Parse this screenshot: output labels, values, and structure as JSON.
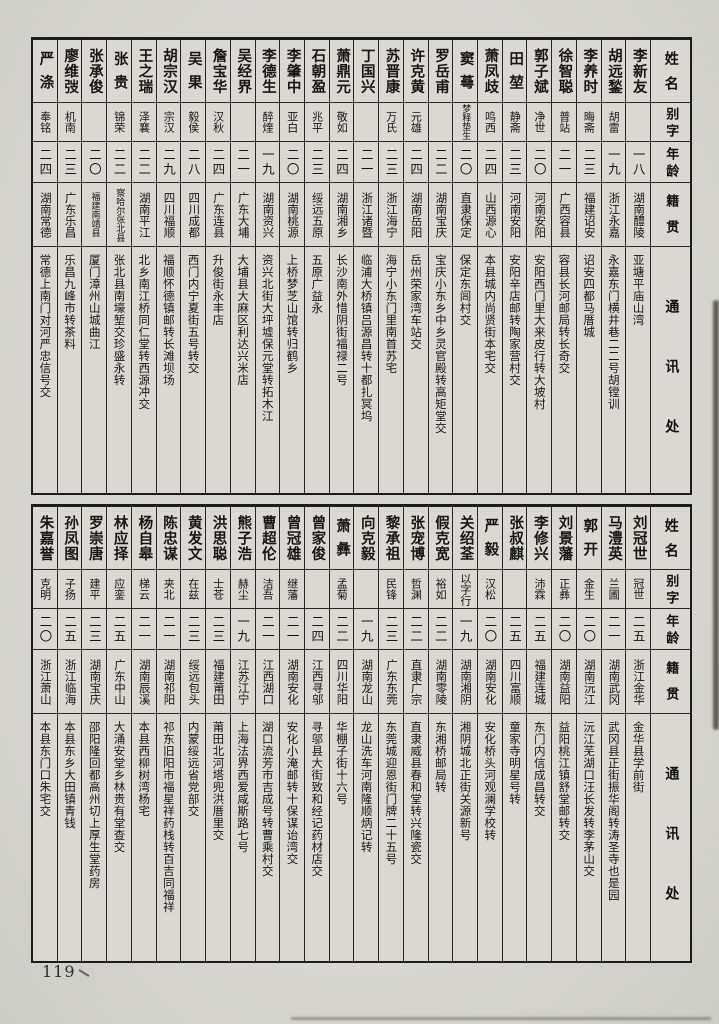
{
  "page": {
    "number": "119",
    "paper_color": "#d8d7d2",
    "ink_color": "#1c1c1c"
  },
  "headers": {
    "name": "姓名",
    "courtesy": "别字",
    "age": "年龄",
    "native": "籍贯",
    "contact": "通讯处"
  },
  "tables": [
    {
      "entries": [
        {
          "name": "李新友",
          "courtesy": "",
          "age": "一八",
          "native": "湖南醴陵",
          "contact": "亚塘平庙山湾"
        },
        {
          "name": "胡远鍫",
          "courtesy": "胡雷",
          "age": "一九",
          "native": "浙江永嘉",
          "contact": "永嘉东门横井巷二二号胡镗训"
        },
        {
          "name": "李养时",
          "courtesy": "晦斋",
          "age": "二三",
          "native": "福建诏安",
          "contact": "诏安四都马厝城"
        },
        {
          "name": "徐智聪",
          "courtesy": "普站",
          "age": "二一",
          "native": "广西容县",
          "contact": "容县长河邮局转长奇交"
        },
        {
          "name": "郭子斌",
          "courtesy": "净世",
          "age": "二〇",
          "native": "河南安阳",
          "contact": "安阳西门里大来皮行转大坡村"
        },
        {
          "name": "田堃",
          "courtesy": "静斋",
          "age": "二三",
          "native": "河南安阳",
          "contact": "安阳辛店邮转陶家营村交"
        },
        {
          "name": "萧凤歧",
          "courtesy": "鸣西",
          "age": "二四",
          "native": "山西源心",
          "contact": "本县城内尚贤街本宅交"
        },
        {
          "name": "窦蕚",
          "courtesy": "梦释垫生",
          "age": "二〇",
          "native": "直隶保定",
          "contact": "保定东闾村交"
        },
        {
          "name": "罗岳甫",
          "courtesy": "",
          "age": "二二",
          "native": "湖南宝庆",
          "contact": "宝庆小东乡中乡灵官殿转高矩堂交"
        },
        {
          "name": "许克黄",
          "courtesy": "元雄",
          "age": "二四",
          "native": "湖南岳阳",
          "contact": "岳州荣家湾车站交"
        },
        {
          "name": "苏晋康",
          "courtesy": "万氏",
          "age": "二三",
          "native": "浙江海宁",
          "contact": "海宁小东门里南首苏宅"
        },
        {
          "name": "丁国兴",
          "courtesy": "",
          "age": "二一",
          "native": "浙江诸暨",
          "contact": "临浦大桥镇吕源昌转十都扎冥坞"
        },
        {
          "name": "萧鼎元",
          "courtesy": "敬如",
          "age": "二四",
          "native": "湖南湘乡",
          "contact": "长沙南外惜阴街福禄二号"
        },
        {
          "name": "石朝盈",
          "courtesy": "兆平",
          "age": "二三",
          "native": "绥远五原",
          "contact": "五原广益永"
        },
        {
          "name": "李肇中",
          "courtesy": "亚白",
          "age": "二〇",
          "native": "湖南桃源",
          "contact": "上桥梦芝山馆转归鹤乡"
        },
        {
          "name": "李德生",
          "courtesy": "醉煃",
          "age": "一九",
          "native": "湖南资兴",
          "contact": "资兴北街大坪墟保元堂转拓木江"
        },
        {
          "name": "吴经界",
          "courtesy": "",
          "age": "二一",
          "native": "广东大埔",
          "contact": "大埔县大麻区利达兴米店"
        },
        {
          "name": "詹宝华",
          "courtesy": "汉秋",
          "age": "二四",
          "native": "广东连县",
          "contact": "升俊街永丰店"
        },
        {
          "name": "吴果",
          "courtesy": "毅侯",
          "age": "二八",
          "native": "四川成都",
          "contact": "西门内宁夏街五号转交"
        },
        {
          "name": "胡宗汉",
          "courtesy": "宗汉",
          "age": "二九",
          "native": "四川福顺",
          "contact": "福顺怀德镇邮转长滩坝场"
        },
        {
          "name": "王之瑞",
          "courtesy": "泽襄",
          "age": "二二",
          "native": "湖南平江",
          "contact": "北乡南江桥同仁堂转西源冲交"
        },
        {
          "name": "张贵",
          "courtesy": "锦荣",
          "age": "二二",
          "native": "察哈尔张北县",
          "contact": "张北县南壕堑交珍盛永转"
        },
        {
          "name": "张承俊",
          "courtesy": "",
          "age": "二〇",
          "native": "福建南靖县",
          "contact": "厦门漳州山城曲江"
        },
        {
          "name": "廖维弢",
          "courtesy": "机南",
          "age": "二三",
          "native": "广东乐昌",
          "contact": "乐昌九峰市转茶料"
        },
        {
          "name": "严涤",
          "courtesy": "奉铭",
          "age": "二四",
          "native": "湖南常德",
          "contact": "常德上南门对河严忠信号交"
        }
      ]
    },
    {
      "entries": [
        {
          "name": "刘冠世",
          "courtesy": "冠世",
          "age": "二五",
          "native": "浙江金华",
          "contact": "金华县学前街"
        },
        {
          "name": "马澧英",
          "courtesy": "兰圃",
          "age": "二一",
          "native": "湖南武冈",
          "contact": "武冈县正街振华阁转涛圣寺也是园"
        },
        {
          "name": "郭开",
          "courtesy": "金生",
          "age": "二〇",
          "native": "湖南沅江",
          "contact": "沅江芜湖口汪长发转李茅山交"
        },
        {
          "name": "刘景藩",
          "courtesy": "正彝",
          "age": "二〇",
          "native": "湖南益阳",
          "contact": "益阳桃江镇舒堂邮转交"
        },
        {
          "name": "李修兴",
          "courtesy": "沛霖",
          "age": "二五",
          "native": "福建连城",
          "contact": "东门内信成昌转交"
        },
        {
          "name": "张叔麒",
          "courtesy": "",
          "age": "二五",
          "native": "四川富顺",
          "contact": "童家寺明星号转"
        },
        {
          "name": "严毅",
          "courtesy": "汉松",
          "age": "二〇",
          "native": "湖南安化",
          "contact": "安化桥头河观澜学校转"
        },
        {
          "name": "关绍荃",
          "courtesy": "以字行",
          "age": "一九",
          "native": "湖南湘阴",
          "contact": "湘阴城北正街关源新号"
        },
        {
          "name": "假克宽",
          "courtesy": "裕如",
          "age": "二二",
          "native": "湖南零陵",
          "contact": "东湘桥邮局转"
        },
        {
          "name": "张宠博",
          "courtesy": "哲渊",
          "age": "二二",
          "native": "直隶广宗",
          "contact": "直隶威县春和堂转兴隆瓷交"
        },
        {
          "name": "黎承祖",
          "courtesy": "民锋",
          "age": "二三",
          "native": "广东东莞",
          "contact": "东莞城迎恩街门牌二十五号"
        },
        {
          "name": "向克毅",
          "courtesy": "",
          "age": "一九",
          "native": "湖南龙山",
          "contact": "龙山洗车河南隆顺炳记转"
        },
        {
          "name": "萧彝",
          "courtesy": "孟菊",
          "age": "二二",
          "native": "四川华阳",
          "contact": "华棚子街十六号"
        },
        {
          "name": "曾家俊",
          "courtesy": "",
          "age": "二四",
          "native": "江西寻邬",
          "contact": "寻邬县大街致和经记药材店交"
        },
        {
          "name": "曾冠雄",
          "courtesy": "继藩",
          "age": "二一",
          "native": "湖南安化",
          "contact": "安化小淹邮转十保谋诒湾交"
        },
        {
          "name": "曹超伦",
          "courtesy": "洁吾",
          "age": "二一",
          "native": "江西湖口",
          "contact": "湖口流芳市吉成号转曹乘村交"
        },
        {
          "name": "熊子浩",
          "courtesy": "赫尘",
          "age": "一九",
          "native": "江苏江宁",
          "contact": "上海法界西爱咸斯路七号"
        },
        {
          "name": "洪思聪",
          "courtesy": "士苍",
          "age": "二三",
          "native": "福建莆田",
          "contact": "莆田北河塔兜洪厝里交"
        },
        {
          "name": "黄发文",
          "courtesy": "在兹",
          "age": "二三",
          "native": "绥远包头",
          "contact": "内蒙绥远省党部交"
        },
        {
          "name": "陈忠谋",
          "courtesy": "夹北",
          "age": "二一",
          "native": "湖南祁阳",
          "contact": "祁东旧阳市福星祥药栈转百吉同福祥"
        },
        {
          "name": "杨自皋",
          "courtesy": "梯云",
          "age": "二一",
          "native": "湖南辰溪",
          "contact": "本县西柳树湾杨宅"
        },
        {
          "name": "林应择",
          "courtesy": "应銮",
          "age": "二五",
          "native": "广东中山",
          "contact": "大涌安堂乡林贵有堂查交"
        },
        {
          "name": "罗崇唐",
          "courtesy": "建平",
          "age": "二三",
          "native": "湖南宝庆",
          "contact": "邵阳隆回都高州切上厚生堂药房"
        },
        {
          "name": "孙凤图",
          "courtesy": "子扬",
          "age": "二五",
          "native": "浙江临海",
          "contact": "本县东乡大田镇青钱"
        },
        {
          "name": "朱嘉誉",
          "courtesy": "克明",
          "age": "二〇",
          "native": "浙江萧山",
          "contact": "本县东门口朱宅交"
        }
      ]
    }
  ]
}
